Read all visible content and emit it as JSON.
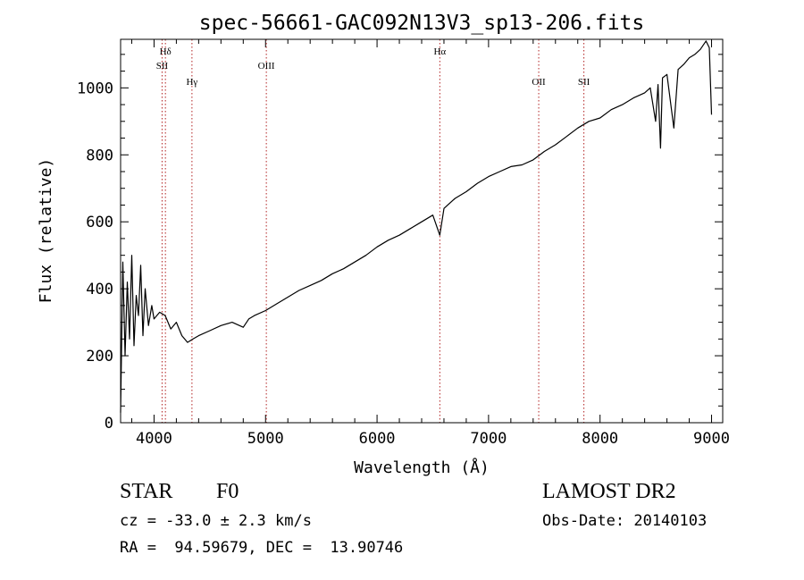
{
  "chart_data": {
    "type": "line",
    "title": "spec-56661-GAC092N13V3_sp13-206.fits",
    "xlabel": "Wavelength (Å)",
    "ylabel": "Flux (relative)",
    "xlim": [
      3700,
      9100
    ],
    "ylim": [
      0,
      1145
    ],
    "xticks": [
      4000,
      5000,
      6000,
      7000,
      8000,
      9000
    ],
    "yticks": [
      0,
      200,
      400,
      600,
      800,
      1000
    ],
    "grid": false,
    "line_color": "#000000",
    "marker_color": "#b22222",
    "series": [
      {
        "x": [
          3700,
          3720,
          3740,
          3760,
          3780,
          3800,
          3820,
          3840,
          3860,
          3880,
          3900,
          3920,
          3950,
          3980,
          4000,
          4050,
          4100,
          4150,
          4200,
          4250,
          4300,
          4350,
          4400,
          4500,
          4600,
          4700,
          4800,
          4850,
          4900,
          5000,
          5100,
          5200,
          5300,
          5400,
          5500,
          5600,
          5700,
          5800,
          5900,
          6000,
          6100,
          6200,
          6300,
          6400,
          6500,
          6563,
          6600,
          6700,
          6800,
          6900,
          7000,
          7100,
          7200,
          7300,
          7400,
          7500,
          7600,
          7700,
          7800,
          7900,
          8000,
          8100,
          8200,
          8300,
          8400,
          8450,
          8498,
          8520,
          8542,
          8560,
          8600,
          8662,
          8700,
          8750,
          8800,
          8850,
          8900,
          8950,
          8980,
          9000
        ],
        "y": [
          30,
          480,
          200,
          420,
          250,
          500,
          230,
          380,
          320,
          470,
          260,
          400,
          290,
          350,
          310,
          330,
          320,
          280,
          300,
          260,
          240,
          250,
          260,
          275,
          290,
          300,
          285,
          310,
          320,
          335,
          355,
          375,
          395,
          410,
          425,
          445,
          460,
          480,
          500,
          525,
          545,
          560,
          580,
          600,
          620,
          560,
          640,
          670,
          690,
          715,
          735,
          750,
          765,
          770,
          785,
          810,
          830,
          855,
          880,
          900,
          910,
          935,
          950,
          970,
          985,
          1000,
          900,
          1010,
          820,
          1030,
          1040,
          880,
          1055,
          1070,
          1090,
          1100,
          1115,
          1140,
          1120,
          920
        ]
      }
    ],
    "lines": [
      {
        "label": "Hδ",
        "x": 4102,
        "row": 0
      },
      {
        "label": "SII",
        "x": 4072,
        "row": 1
      },
      {
        "label": "Hγ",
        "x": 4340,
        "row": 2
      },
      {
        "label": "OIII",
        "x": 5007,
        "row": 1
      },
      {
        "label": "Hα",
        "x": 6563,
        "row": 0
      },
      {
        "label": "OII",
        "x": 7450,
        "row": 2
      },
      {
        "label": "SII",
        "x": 7855,
        "row": 2
      }
    ]
  },
  "info": {
    "class_label": "STAR",
    "subclass": "F0",
    "survey": "LAMOST DR2",
    "redshift": "cz = -33.0 ± 2.3 km/s",
    "obs_date": "Obs-Date: 20140103",
    "coords": "RA =  94.59679, DEC =  13.90746"
  }
}
